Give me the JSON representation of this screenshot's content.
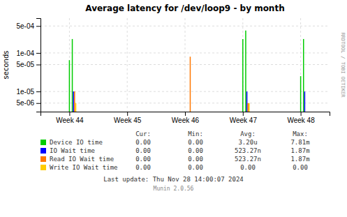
{
  "chart_data": {
    "type": "bar",
    "title": "Average latency for /dev/loop9 - by month",
    "ylabel": "seconds",
    "log": "y",
    "grid": true,
    "xlim": [
      43.5,
      48.5
    ],
    "xticks": [
      {
        "value": 44,
        "label": "Week 44"
      },
      {
        "value": 45,
        "label": "Week 45"
      },
      {
        "value": 46,
        "label": "Week 46"
      },
      {
        "value": 47,
        "label": "Week 47"
      },
      {
        "value": 48,
        "label": "Week 48"
      }
    ],
    "ylim": [
      3e-06,
      0.0008
    ],
    "yticks": [
      {
        "value": 5e-06,
        "label": "5e-06"
      },
      {
        "value": 1e-05,
        "label": "1e-05"
      },
      {
        "value": 5e-05,
        "label": "5e-05"
      },
      {
        "value": 0.0001,
        "label": "1e-04"
      },
      {
        "value": 0.0005,
        "label": "5e-04"
      }
    ],
    "series": [
      {
        "name": "Device IO time",
        "color": "#00cc00",
        "x": [
          44.05,
          47.05,
          48.05
        ],
        "values": [
          0.00023,
          0.00038,
          0.00023
        ]
      },
      {
        "color": "#00cc00",
        "x": [
          44.0,
          47.0,
          48.0
        ],
        "values": [
          6.5e-05,
          0.00023,
          2.5e-05
        ]
      },
      {
        "name": "IO Wait time",
        "color": "#0000ff",
        "x": [
          44.07,
          47.07,
          48.07
        ],
        "values": [
          1e-05,
          1e-05,
          1e-05
        ]
      },
      {
        "name": "Read IO Wait time",
        "color": "#ff7700",
        "x": [
          44.09,
          46.09,
          47.09
        ],
        "values": [
          1e-05,
          8e-05,
          5e-06
        ]
      },
      {
        "name": "Write IO Wait time",
        "color": "#ffcc00",
        "x": [
          44.11,
          47.11
        ],
        "values": [
          5e-06,
          5e-06
        ]
      }
    ],
    "table": {
      "columns": [
        "Cur:",
        "Min:",
        "Avg:",
        "Max:"
      ],
      "rows": [
        [
          "0.00",
          "0.00",
          "3.20u",
          "7.81m"
        ],
        [
          "0.00",
          "0.00",
          "523.27n",
          "1.87m"
        ],
        [
          "0.00",
          "0.00",
          "523.27n",
          "1.87m"
        ],
        [
          "0.00",
          "0.00",
          "0.00",
          "0.00"
        ]
      ]
    },
    "annotations": [
      "Last update: Thu Nov 28 14:00:07 2024",
      "Munin 2.0.56",
      "RRDTOOL / TOBI OETIKER"
    ]
  }
}
